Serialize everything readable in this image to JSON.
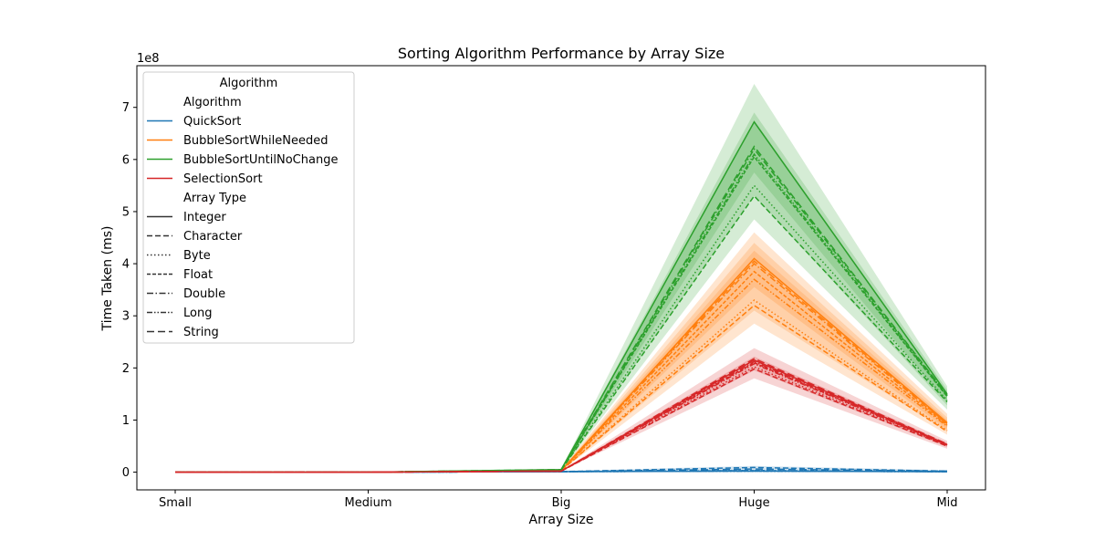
{
  "chart_data": {
    "type": "line",
    "title": "Sorting Algorithm Performance by Array Size",
    "xlabel": "Array Size",
    "ylabel": "Time Taken (ms)",
    "y_offset_label": "1e8",
    "y_scale": 100000000,
    "categories": [
      "Small",
      "Medium",
      "Big",
      "Huge",
      "Mid"
    ],
    "ylim": [
      -0.34,
      7.8
    ],
    "yticks": [
      0,
      1,
      2,
      3,
      4,
      5,
      6,
      7
    ],
    "grid": false,
    "legend": {
      "placement": "upper-left",
      "title": "Algorithm",
      "hue_header": "Algorithm",
      "hue_entries": [
        {
          "name": "QuickSort",
          "color": "#1f77b4"
        },
        {
          "name": "BubbleSortWhileNeeded",
          "color": "#ff7f0e"
        },
        {
          "name": "BubbleSortUntilNoChange",
          "color": "#2ca02c"
        },
        {
          "name": "SelectionSort",
          "color": "#d62728"
        }
      ],
      "style_header": "Array Type",
      "style_entries": [
        {
          "name": "Integer",
          "dash": "solid"
        },
        {
          "name": "Character",
          "dash": "dashed"
        },
        {
          "name": "Byte",
          "dash": "dotted"
        },
        {
          "name": "Float",
          "dash": "densely-dashed"
        },
        {
          "name": "Double",
          "dash": "dashdot"
        },
        {
          "name": "Long",
          "dash": "dashdotdot"
        },
        {
          "name": "String",
          "dash": "loosely-dashed"
        }
      ]
    },
    "series": [
      {
        "algorithm": "QuickSort",
        "color": "#1f77b4",
        "bands": [
          {
            "low": [
              0,
              0,
              0.01,
              0.0,
              0.0
            ],
            "high": [
              0,
              0,
              0.02,
              0.12,
              0.04
            ]
          }
        ],
        "lines": [
          {
            "type": "Integer",
            "values": [
              0,
              0,
              0.01,
              0.02,
              0.01
            ]
          },
          {
            "type": "Character",
            "values": [
              0,
              0,
              0.01,
              0.09,
              0.02
            ]
          },
          {
            "type": "Byte",
            "values": [
              0,
              0,
              0.01,
              0.02,
              0.01
            ]
          },
          {
            "type": "Float",
            "values": [
              0,
              0,
              0.01,
              0.03,
              0.01
            ]
          },
          {
            "type": "Double",
            "values": [
              0,
              0,
              0.01,
              0.03,
              0.01
            ]
          },
          {
            "type": "Long",
            "values": [
              0,
              0,
              0.01,
              0.02,
              0.01
            ]
          },
          {
            "type": "String",
            "values": [
              0,
              0,
              0.01,
              0.06,
              0.02
            ]
          }
        ]
      },
      {
        "algorithm": "BubbleSortWhileNeeded",
        "color": "#ff7f0e",
        "bands": [
          {
            "low": [
              0,
              0,
              0.02,
              2.85,
              0.72
            ],
            "high": [
              0,
              0,
              0.05,
              4.6,
              1.12
            ]
          },
          {
            "low": [
              0,
              0,
              0.02,
              3.1,
              0.78
            ],
            "high": [
              0,
              0,
              0.05,
              4.4,
              1.05
            ]
          },
          {
            "low": [
              0,
              0,
              0.02,
              3.55,
              0.82
            ],
            "high": [
              0,
              0,
              0.04,
              4.25,
              1.0
            ]
          }
        ],
        "lines": [
          {
            "type": "Integer",
            "values": [
              0,
              0,
              0.03,
              4.1,
              0.95
            ]
          },
          {
            "type": "Character",
            "values": [
              0,
              0,
              0.03,
              3.2,
              0.78
            ]
          },
          {
            "type": "Byte",
            "values": [
              0,
              0,
              0.03,
              3.3,
              0.8
            ]
          },
          {
            "type": "Float",
            "values": [
              0,
              0,
              0.03,
              3.85,
              0.9
            ]
          },
          {
            "type": "Double",
            "values": [
              0,
              0,
              0.03,
              4.0,
              0.92
            ]
          },
          {
            "type": "Long",
            "values": [
              0,
              0,
              0.03,
              3.7,
              0.88
            ]
          },
          {
            "type": "String",
            "values": [
              0,
              0,
              0.03,
              4.05,
              0.93
            ]
          }
        ]
      },
      {
        "algorithm": "BubbleSortUntilNoChange",
        "color": "#2ca02c",
        "bands": [
          {
            "low": [
              0,
              0,
              0.03,
              4.85,
              1.2
            ],
            "high": [
              0,
              0,
              0.06,
              7.45,
              1.65
            ]
          },
          {
            "low": [
              0,
              0,
              0.03,
              5.3,
              1.28
            ],
            "high": [
              0,
              0,
              0.05,
              6.9,
              1.58
            ]
          },
          {
            "low": [
              0,
              0,
              0.03,
              5.75,
              1.33
            ],
            "high": [
              0,
              0,
              0.05,
              6.75,
              1.52
            ]
          }
        ],
        "lines": [
          {
            "type": "Integer",
            "values": [
              0,
              0,
              0.05,
              6.72,
              1.5
            ]
          },
          {
            "type": "Character",
            "values": [
              0,
              0,
              0.04,
              5.3,
              1.35
            ]
          },
          {
            "type": "Byte",
            "values": [
              0,
              0,
              0.04,
              5.5,
              1.38
            ]
          },
          {
            "type": "Float",
            "values": [
              0,
              0,
              0.04,
              6.05,
              1.45
            ]
          },
          {
            "type": "Double",
            "values": [
              0,
              0,
              0.04,
              6.2,
              1.47
            ]
          },
          {
            "type": "Long",
            "values": [
              0,
              0,
              0.04,
              6.1,
              1.46
            ]
          },
          {
            "type": "String",
            "values": [
              0,
              0,
              0.05,
              6.25,
              1.48
            ]
          }
        ]
      },
      {
        "algorithm": "SelectionSort",
        "color": "#d62728",
        "bands": [
          {
            "low": [
              0,
              0,
              0.02,
              1.8,
              0.45
            ],
            "high": [
              0,
              0,
              0.03,
              2.38,
              0.6
            ]
          },
          {
            "low": [
              0,
              0,
              0.02,
              1.95,
              0.48
            ],
            "high": [
              0,
              0,
              0.03,
              2.22,
              0.56
            ]
          }
        ],
        "lines": [
          {
            "type": "Integer",
            "values": [
              0,
              0,
              0.02,
              2.15,
              0.53
            ]
          },
          {
            "type": "Character",
            "values": [
              0,
              0,
              0.02,
              1.98,
              0.5
            ]
          },
          {
            "type": "Byte",
            "values": [
              0,
              0,
              0.02,
              2.02,
              0.51
            ]
          },
          {
            "type": "Float",
            "values": [
              0,
              0,
              0.02,
              2.1,
              0.52
            ]
          },
          {
            "type": "Double",
            "values": [
              0,
              0,
              0.02,
              2.12,
              0.52
            ]
          },
          {
            "type": "Long",
            "values": [
              0,
              0,
              0.02,
              2.08,
              0.52
            ]
          },
          {
            "type": "String",
            "values": [
              0,
              0,
              0.02,
              2.18,
              0.54
            ]
          }
        ]
      }
    ]
  }
}
